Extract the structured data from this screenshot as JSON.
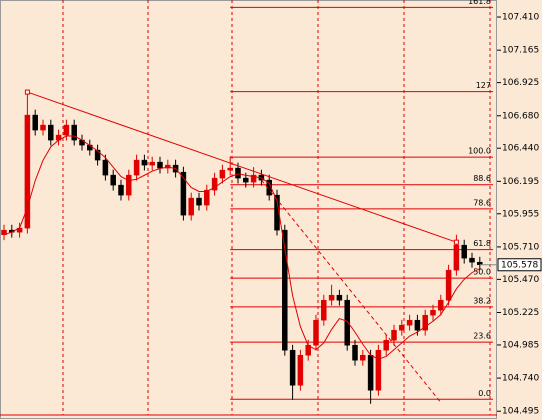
{
  "chart_data": {
    "type": "candlestick",
    "ylim": [
      104.43,
      107.536
    ],
    "yticks": [
      {
        "value": 107.41,
        "label": "107.410"
      },
      107.165,
      106.925,
      {
        "value": 106.68,
        "label": "106.680"
      },
      {
        "value": 106.44,
        "label": "106.440"
      },
      106.195,
      105.955,
      {
        "value": 105.71,
        "label": "105.710"
      },
      {
        "value": 105.47,
        "label": "105.470"
      },
      105.225,
      104.985,
      {
        "value": 104.74,
        "label": "104.740"
      },
      104.495
    ],
    "open": [
      105.8,
      105.834,
      105.819,
      105.849,
      106.685,
      106.574,
      106.611,
      106.5,
      106.537,
      106.611,
      106.5,
      106.463,
      106.426,
      106.352,
      106.241,
      106.167,
      106.093,
      106.241,
      106.352,
      106.315,
      106.337,
      106.293,
      106.315,
      106.263,
      105.945,
      106.071,
      106.019,
      106.13,
      106.219,
      106.278,
      106.293,
      106.219,
      106.189,
      106.241,
      106.204,
      106.093,
      105.834,
      104.946,
      104.687,
      104.909,
      104.983,
      105.168,
      105.316,
      105.353,
      105.316,
      104.983,
      104.872,
      104.909,
      104.65,
      104.946,
      105.02,
      105.094,
      105.131,
      105.168,
      105.094,
      105.205,
      105.242,
      105.316,
      105.538,
      105.723,
      105.627,
      105.597
    ],
    "high": [
      105.874,
      105.874,
      105.889,
      106.855,
      106.725,
      106.651,
      106.651,
      106.577,
      106.651,
      106.651,
      106.54,
      106.503,
      106.466,
      106.392,
      106.281,
      106.207,
      106.281,
      106.392,
      106.392,
      106.377,
      106.377,
      106.355,
      106.355,
      106.303,
      106.111,
      106.111,
      106.17,
      106.259,
      106.318,
      106.38,
      106.333,
      106.259,
      106.3,
      106.281,
      106.244,
      106.133,
      105.874,
      104.986,
      104.949,
      105.023,
      105.208,
      105.356,
      105.43,
      105.393,
      105.356,
      105.023,
      104.949,
      104.949,
      104.986,
      105.06,
      105.134,
      105.171,
      105.208,
      105.208,
      105.245,
      105.282,
      105.356,
      105.578,
      105.8,
      105.763,
      105.667,
      105.637
    ],
    "low": [
      105.76,
      105.779,
      105.779,
      105.809,
      106.534,
      106.534,
      106.46,
      106.46,
      106.497,
      106.46,
      106.423,
      106.386,
      106.312,
      106.201,
      106.127,
      106.053,
      106.053,
      106.201,
      106.275,
      106.275,
      106.253,
      106.253,
      106.223,
      105.905,
      105.905,
      105.979,
      105.979,
      106.09,
      106.179,
      106.238,
      106.179,
      106.149,
      106.149,
      106.164,
      106.053,
      105.794,
      104.906,
      104.58,
      104.647,
      104.869,
      104.943,
      105.128,
      105.276,
      105.276,
      104.943,
      104.832,
      104.832,
      104.55,
      104.61,
      104.906,
      104.98,
      105.054,
      105.091,
      105.054,
      105.054,
      105.165,
      105.202,
      105.276,
      105.498,
      105.587,
      105.557,
      105.538
    ],
    "close": [
      105.834,
      105.819,
      105.849,
      106.685,
      106.574,
      106.611,
      106.5,
      106.537,
      106.611,
      106.5,
      106.463,
      106.426,
      106.352,
      106.241,
      106.167,
      106.093,
      106.241,
      106.352,
      106.315,
      106.337,
      106.293,
      106.315,
      106.263,
      105.945,
      106.071,
      106.019,
      106.13,
      106.219,
      106.278,
      106.293,
      106.219,
      106.189,
      106.241,
      106.204,
      106.093,
      105.834,
      104.946,
      104.687,
      104.909,
      104.983,
      105.168,
      105.316,
      105.353,
      105.316,
      104.983,
      104.872,
      104.909,
      104.65,
      104.946,
      105.02,
      105.094,
      105.131,
      105.168,
      105.094,
      105.205,
      105.242,
      105.316,
      105.538,
      105.723,
      105.627,
      105.597,
      105.578
    ],
    "moving_average": [
      105.8,
      105.82,
      105.85,
      106.0,
      106.2,
      106.35,
      106.45,
      106.5,
      106.53,
      106.53,
      106.5,
      106.46,
      106.42,
      106.37,
      106.3,
      106.23,
      106.2,
      106.21,
      106.24,
      106.27,
      106.29,
      106.3,
      106.29,
      106.22,
      106.15,
      106.12,
      106.12,
      106.15,
      106.19,
      106.23,
      106.25,
      106.24,
      106.23,
      106.22,
      106.18,
      106.05,
      105.7,
      105.35,
      105.12,
      104.98,
      104.95,
      105.0,
      105.1,
      105.18,
      105.16,
      105.08,
      104.99,
      104.91,
      104.88,
      104.9,
      104.95,
      105.0,
      105.05,
      105.08,
      105.12,
      105.16,
      105.21,
      105.3,
      105.4,
      105.47,
      105.52,
      105.55
    ],
    "trendline": {
      "x": [
        3,
        58
      ],
      "y": [
        106.855,
        105.745
      ]
    },
    "dashed_line": {
      "x": [
        33,
        56
      ],
      "y": [
        106.204,
        104.56
      ]
    },
    "fib_start": 29,
    "fib_levels": [
      {
        "label": "161.8",
        "price": 107.481
      },
      {
        "label": "127",
        "price": 106.858
      },
      {
        "label": "100.0",
        "price": 106.374
      },
      {
        "label": "88.6",
        "price": 106.17
      },
      {
        "label": "78.6",
        "price": 105.991
      },
      {
        "label": "61.8",
        "price": 105.69
      },
      {
        "label": "50.0",
        "price": 105.479
      },
      {
        "label": "38.2",
        "price": 105.267
      },
      {
        "label": "23.6",
        "price": 105.006
      },
      {
        "label": "0.0",
        "price": 104.583
      }
    ],
    "last_price": 105.578,
    "color": "#e00000"
  }
}
